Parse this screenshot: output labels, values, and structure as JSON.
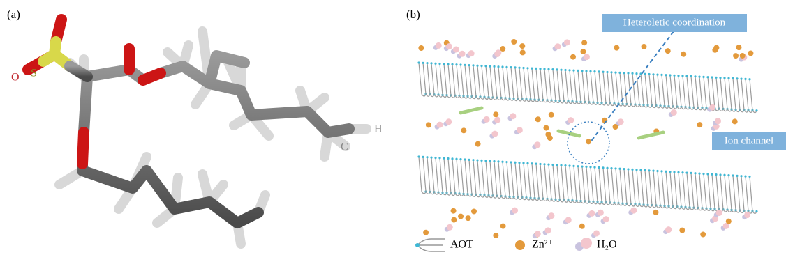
{
  "panel_a": {
    "label": "(a)",
    "atoms": {
      "oxygen": "O",
      "sulfur": "S",
      "hydrogen": "H",
      "carbon": "C"
    }
  },
  "panel_b": {
    "label": "(b)",
    "callouts": [
      "Heteroletic coordination",
      "Ion channel"
    ],
    "legend": [
      "AOT",
      "Zn²⁺",
      "H₂O"
    ]
  }
}
